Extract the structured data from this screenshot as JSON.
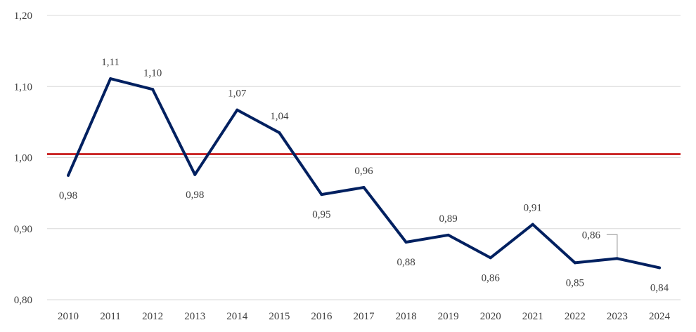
{
  "chart_data": {
    "type": "line",
    "title": "",
    "xlabel": "",
    "ylabel": "",
    "x": [
      "2010",
      "2011",
      "2012",
      "2013",
      "2014",
      "2015",
      "2016",
      "2017",
      "2018",
      "2019",
      "2020",
      "2021",
      "2022",
      "2023",
      "2024"
    ],
    "series": [
      {
        "values": [
          0.975,
          1.111,
          1.096,
          0.976,
          1.067,
          1.035,
          0.948,
          0.958,
          0.881,
          0.891,
          0.859,
          0.906,
          0.852,
          0.858,
          0.845
        ],
        "labels": [
          "0,98",
          "1,11",
          "1,10",
          "0,98",
          "1,07",
          "1,04",
          "0,95",
          "0,96",
          "0,88",
          "0,89",
          "0,86",
          "0,91",
          "0,85",
          "0,86",
          "0,84"
        ],
        "color": "#002060"
      }
    ],
    "reference_line": {
      "value": 1.005,
      "color": "#C00000"
    },
    "ylim": [
      0.8,
      1.2
    ],
    "yticks": [
      0.8,
      0.9,
      1.0,
      1.1,
      1.2
    ],
    "ytick_labels": [
      "0,80",
      "0,90",
      "1,00",
      "1,10",
      "1,20"
    ],
    "grid": true,
    "legend": "none",
    "gridline_color": "#D9D9D9"
  }
}
